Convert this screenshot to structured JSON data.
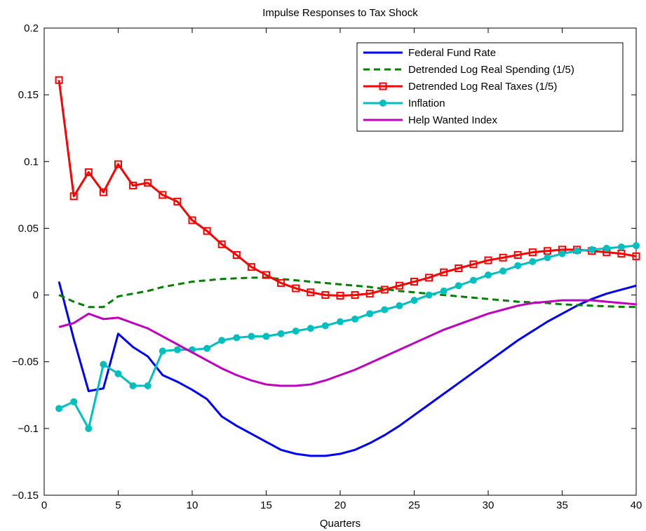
{
  "chart_data": {
    "type": "line",
    "title": "Impulse Responses to Tax Shock",
    "xlabel": "Quarters",
    "ylabel": "",
    "xlim": [
      0,
      40
    ],
    "ylim": [
      -0.15,
      0.2
    ],
    "xticks": [
      0,
      5,
      10,
      15,
      20,
      25,
      30,
      35,
      40
    ],
    "yticks": [
      -0.15,
      -0.1,
      -0.05,
      0,
      0.05,
      0.1,
      0.15,
      0.2
    ],
    "xtick_labels": [
      "0",
      "5",
      "10",
      "15",
      "20",
      "25",
      "30",
      "35",
      "40"
    ],
    "ytick_labels": [
      "−0.15",
      "−0.1",
      "−0.05",
      "0",
      "0.05",
      "0.1",
      "0.15",
      "0.2"
    ],
    "grid": false,
    "legend_position": "top-right",
    "x": [
      1,
      2,
      3,
      4,
      5,
      6,
      7,
      8,
      9,
      10,
      11,
      12,
      13,
      14,
      15,
      16,
      17,
      18,
      19,
      20,
      21,
      22,
      23,
      24,
      25,
      26,
      27,
      28,
      29,
      30,
      31,
      32,
      33,
      34,
      35,
      36,
      37,
      38,
      39,
      40
    ],
    "series": [
      {
        "name": "Federal Fund Rate",
        "color": "#0000ff",
        "style": "solid",
        "marker": "none",
        "values": [
          0.01,
          -0.033,
          -0.072,
          -0.07,
          -0.029,
          -0.039,
          -0.046,
          -0.06,
          -0.065,
          -0.071,
          -0.078,
          -0.091,
          -0.098,
          -0.104,
          -0.11,
          -0.116,
          -0.119,
          -0.1205,
          -0.1205,
          -0.119,
          -0.116,
          -0.111,
          -0.105,
          -0.098,
          -0.09,
          -0.082,
          -0.074,
          -0.066,
          -0.058,
          -0.05,
          -0.042,
          -0.034,
          -0.027,
          -0.02,
          -0.014,
          -0.008,
          -0.003,
          0.001,
          0.004,
          0.007
        ]
      },
      {
        "name": "Detrended Log Real Spending (1/5)",
        "color": "#007f00",
        "style": "dashed",
        "marker": "none",
        "values": [
          0.0,
          -0.005,
          -0.009,
          -0.009,
          -0.001,
          0.001,
          0.003,
          0.006,
          0.008,
          0.01,
          0.011,
          0.012,
          0.0125,
          0.013,
          0.013,
          0.012,
          0.011,
          0.01,
          0.009,
          0.008,
          0.007,
          0.006,
          0.0045,
          0.003,
          0.002,
          0.001,
          0.0,
          -0.001,
          -0.002,
          -0.003,
          -0.004,
          -0.005,
          -0.0055,
          -0.006,
          -0.007,
          -0.0075,
          -0.008,
          -0.0085,
          -0.0088,
          -0.009
        ]
      },
      {
        "name": "Detrended Log Real Taxes (1/5)",
        "color": "#ff0000",
        "style": "solid",
        "marker": "square",
        "values": [
          0.161,
          0.074,
          0.092,
          0.077,
          0.098,
          0.082,
          0.084,
          0.075,
          0.07,
          0.056,
          0.048,
          0.038,
          0.03,
          0.021,
          0.015,
          0.009,
          0.005,
          0.002,
          0.0,
          -0.0005,
          0.0,
          0.001,
          0.004,
          0.007,
          0.01,
          0.013,
          0.017,
          0.02,
          0.023,
          0.026,
          0.028,
          0.03,
          0.032,
          0.033,
          0.034,
          0.034,
          0.033,
          0.032,
          0.031,
          0.029
        ]
      },
      {
        "name": "Inflation",
        "color": "#00bfbf",
        "style": "solid",
        "marker": "circle",
        "values": [
          -0.085,
          -0.08,
          -0.1,
          -0.052,
          -0.059,
          -0.068,
          -0.068,
          -0.042,
          -0.041,
          -0.041,
          -0.04,
          -0.034,
          -0.032,
          -0.031,
          -0.031,
          -0.029,
          -0.027,
          -0.025,
          -0.023,
          -0.02,
          -0.018,
          -0.014,
          -0.011,
          -0.008,
          -0.004,
          0.0,
          0.003,
          0.007,
          0.011,
          0.015,
          0.018,
          0.022,
          0.025,
          0.028,
          0.031,
          0.033,
          0.034,
          0.035,
          0.036,
          0.037
        ]
      },
      {
        "name": "Help Wanted Index",
        "color": "#bf00bf",
        "style": "solid",
        "marker": "none",
        "values": [
          -0.024,
          -0.021,
          -0.014,
          -0.018,
          -0.017,
          -0.021,
          -0.025,
          -0.031,
          -0.037,
          -0.043,
          -0.049,
          -0.055,
          -0.06,
          -0.064,
          -0.067,
          -0.068,
          -0.068,
          -0.067,
          -0.064,
          -0.06,
          -0.056,
          -0.051,
          -0.046,
          -0.041,
          -0.036,
          -0.031,
          -0.026,
          -0.022,
          -0.018,
          -0.014,
          -0.011,
          -0.008,
          -0.006,
          -0.005,
          -0.004,
          -0.004,
          -0.004,
          -0.005,
          -0.006,
          -0.007
        ]
      }
    ]
  }
}
